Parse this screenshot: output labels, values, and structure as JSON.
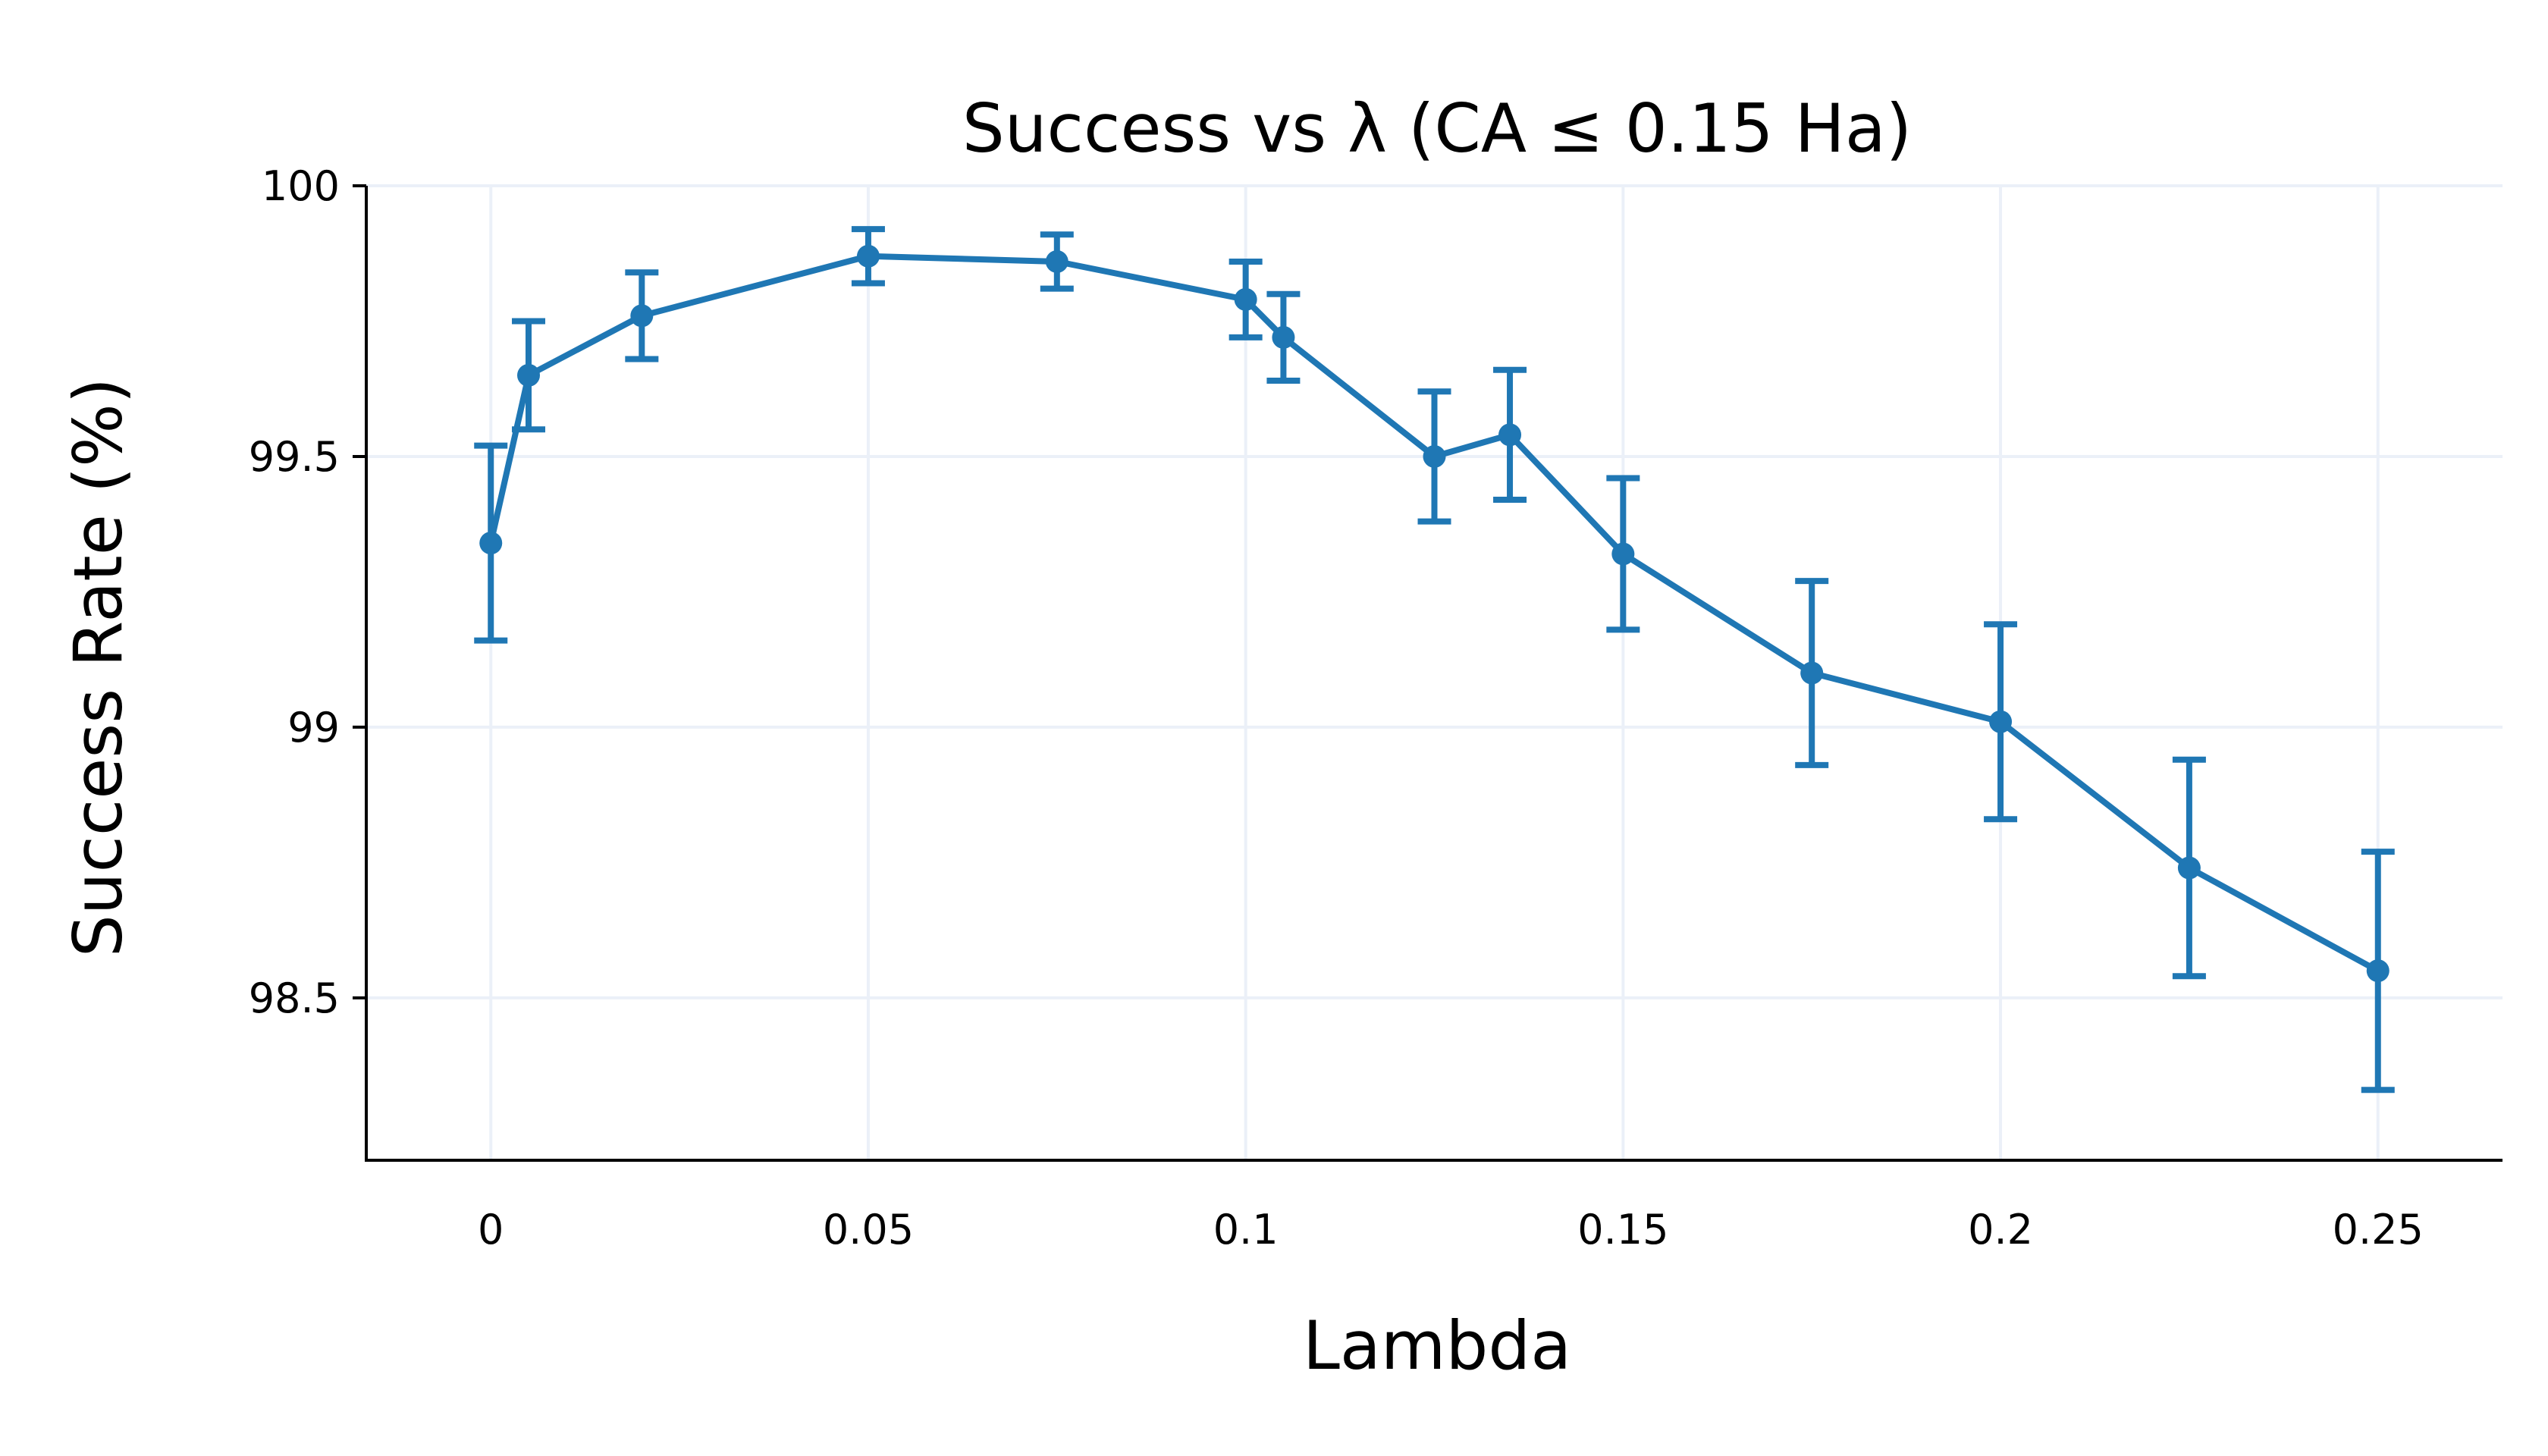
{
  "chart_data": {
    "type": "line",
    "title": "Success vs λ (CA ≤ 0.15 Ha)",
    "xlabel": "Lambda",
    "ylabel": "Success Rate (%)",
    "xlim": [
      -0.0165,
      0.2665
    ],
    "ylim": [
      98.2,
      100.0
    ],
    "x_ticks": [
      0,
      0.05,
      0.1,
      0.15,
      0.2,
      0.25
    ],
    "x_tick_labels": [
      "0",
      "0.05",
      "0.1",
      "0.15",
      "0.2",
      "0.25"
    ],
    "y_ticks": [
      98.5,
      99,
      99.5,
      100
    ],
    "y_tick_labels": [
      "98.5",
      "99",
      "99.5",
      "100"
    ],
    "grid": true,
    "series": [
      {
        "color": "#1F77B4",
        "x": [
          0,
          0.005,
          0.02,
          0.05,
          0.075,
          0.1,
          0.105,
          0.125,
          0.135,
          0.15,
          0.175,
          0.2,
          0.225,
          0.25
        ],
        "y": [
          99.34,
          99.65,
          99.76,
          99.87,
          99.86,
          99.79,
          99.72,
          99.5,
          99.54,
          99.32,
          99.1,
          99.01,
          98.74,
          98.55
        ],
        "error": [
          0.18,
          0.1,
          0.08,
          0.05,
          0.05,
          0.07,
          0.08,
          0.12,
          0.12,
          0.14,
          0.17,
          0.18,
          0.2,
          0.22
        ]
      }
    ]
  }
}
